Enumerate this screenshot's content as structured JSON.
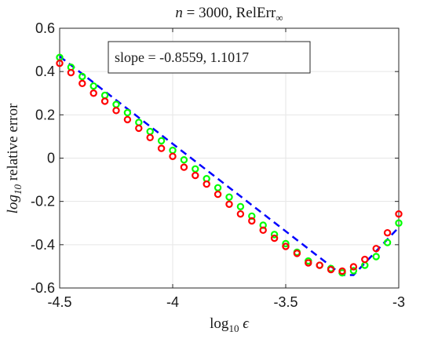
{
  "chart_data": {
    "type": "scatter",
    "title": "n = 3000, RelErr∞",
    "title_parts": {
      "var": "n",
      "eq": " = 3000, RelErr",
      "sub": "∞"
    },
    "xlabel": "log10 ϵ",
    "xlabel_parts": {
      "main": "log",
      "sub": "10",
      "sym": " ϵ"
    },
    "ylabel": "log10 relative error",
    "ylabel_parts": {
      "main": "log",
      "sub": "10",
      "rest": " relative error"
    },
    "xlim": [
      -4.5,
      -3
    ],
    "ylim": [
      -0.6,
      0.6
    ],
    "grid": true,
    "xticks": [
      -4.5,
      -4,
      -3.5,
      -3
    ],
    "xtick_labels": [
      "-4.5",
      "-4",
      "-3.5",
      "-3"
    ],
    "yticks": [
      -0.6,
      -0.4,
      -0.2,
      0,
      0.2,
      0.4,
      0.6
    ],
    "ytick_labels": [
      "-0.6",
      "-0.4",
      "-0.2",
      "0",
      "0.2",
      "0.4",
      "0.6"
    ],
    "annotation": "slope = -0.8559, 1.1017",
    "annotation_box": "top-center",
    "series": [
      {
        "color": "#00ff00",
        "marker": "circle",
        "x": [
          -4.5,
          -4.45,
          -4.4,
          -4.35,
          -4.3,
          -4.25,
          -4.2,
          -4.15,
          -4.1,
          -4.05,
          -4.0,
          -3.95,
          -3.9,
          -3.85,
          -3.8,
          -3.75,
          -3.7,
          -3.65,
          -3.6,
          -3.55,
          -3.5,
          -3.45,
          -3.4,
          -3.35,
          -3.3,
          -3.25,
          -3.2,
          -3.15,
          -3.1,
          -3.05,
          -3.0
        ],
        "y": [
          0.465,
          0.42,
          0.377,
          0.333,
          0.29,
          0.248,
          0.21,
          0.165,
          0.123,
          0.08,
          0.036,
          -0.008,
          -0.05,
          -0.095,
          -0.137,
          -0.18,
          -0.224,
          -0.268,
          -0.31,
          -0.353,
          -0.395,
          -0.435,
          -0.475,
          -0.495,
          -0.51,
          -0.53,
          -0.52,
          -0.495,
          -0.455,
          -0.39,
          -0.3
        ]
      },
      {
        "color": "#ff0000",
        "marker": "circle",
        "x": [
          -4.5,
          -4.45,
          -4.4,
          -4.35,
          -4.3,
          -4.25,
          -4.2,
          -4.15,
          -4.1,
          -4.05,
          -4.0,
          -3.95,
          -3.9,
          -3.85,
          -3.8,
          -3.75,
          -3.7,
          -3.65,
          -3.6,
          -3.55,
          -3.5,
          -3.45,
          -3.4,
          -3.35,
          -3.3,
          -3.25,
          -3.2,
          -3.15,
          -3.1,
          -3.05,
          -3.0
        ],
        "y": [
          0.438,
          0.395,
          0.345,
          0.3,
          0.263,
          0.22,
          0.178,
          0.138,
          0.095,
          0.045,
          0.008,
          -0.042,
          -0.08,
          -0.12,
          -0.167,
          -0.213,
          -0.258,
          -0.29,
          -0.333,
          -0.37,
          -0.408,
          -0.44,
          -0.484,
          -0.495,
          -0.515,
          -0.522,
          -0.502,
          -0.468,
          -0.418,
          -0.345,
          -0.258
        ]
      },
      {
        "color": "#0000ff",
        "line": "dashed",
        "x": [
          -4.5,
          -3.25,
          -3.2,
          -3.0
        ],
        "y": [
          0.47,
          -0.54,
          -0.54,
          -0.32
        ]
      }
    ]
  }
}
